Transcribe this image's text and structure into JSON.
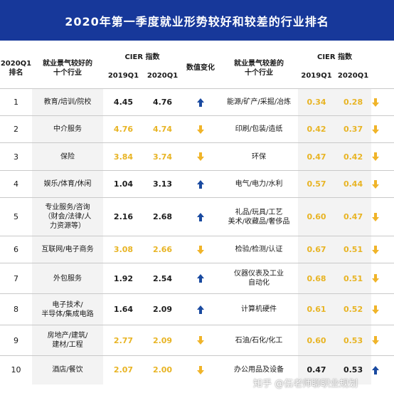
{
  "title": "2020年第一季度就业形势较好和较差的行业排名",
  "headers": {
    "rank_line1": "2020Q1",
    "rank_line2": "排名",
    "good_line1": "就业景气较好的",
    "good_line2": "十个行业",
    "cier_good": "CIER 指数",
    "cier_bad": "CIER 指数",
    "y2019": "2019Q1",
    "y2020": "2020Q1",
    "change": "数值变化",
    "bad_line1": "就业景气较差的",
    "bad_line2": "十个行业",
    "y2019b": "2019Q1",
    "y2020b": "2020Q1"
  },
  "colors": {
    "title_bg": "#17389a",
    "up_arrow": "#1a4aa0",
    "down_arrow": "#f0b429",
    "decline_value": "#e8b424"
  },
  "rows": [
    {
      "rank": "1",
      "good_lines": [
        "教育/培训/院校"
      ],
      "g2019": "4.45",
      "g2020": "4.76",
      "g_change": "up",
      "bad_lines": [
        "能源/矿产/采掘/冶炼"
      ],
      "b2019": "0.34",
      "b2020": "0.28",
      "b_change": "down"
    },
    {
      "rank": "2",
      "good_lines": [
        "中介服务"
      ],
      "g2019": "4.76",
      "g2020": "4.74",
      "g_change": "down",
      "bad_lines": [
        "印刷/包装/造纸"
      ],
      "b2019": "0.42",
      "b2020": "0.37",
      "b_change": "down"
    },
    {
      "rank": "3",
      "good_lines": [
        "保险"
      ],
      "g2019": "3.84",
      "g2020": "3.74",
      "g_change": "down",
      "bad_lines": [
        "环保"
      ],
      "b2019": "0.47",
      "b2020": "0.42",
      "b_change": "down"
    },
    {
      "rank": "4",
      "good_lines": [
        "娱乐/体育/休闲"
      ],
      "g2019": "1.04",
      "g2020": "3.13",
      "g_change": "up",
      "bad_lines": [
        "电气/电力/水利"
      ],
      "b2019": "0.57",
      "b2020": "0.44",
      "b_change": "down"
    },
    {
      "rank": "5",
      "good_lines": [
        "专业服务/咨询",
        "（财会/法律/人",
        "力资源等）"
      ],
      "g2019": "2.16",
      "g2020": "2.68",
      "g_change": "up",
      "bad_lines": [
        "礼品/玩具/工艺",
        "美术/收藏品/奢侈品"
      ],
      "b2019": "0.60",
      "b2020": "0.47",
      "b_change": "down"
    },
    {
      "rank": "6",
      "good_lines": [
        "互联网/电子商务"
      ],
      "g2019": "3.08",
      "g2020": "2.66",
      "g_change": "down",
      "bad_lines": [
        "检验/检测/认证"
      ],
      "b2019": "0.67",
      "b2020": "0.51",
      "b_change": "down"
    },
    {
      "rank": "7",
      "good_lines": [
        "外包服务"
      ],
      "g2019": "1.92",
      "g2020": "2.54",
      "g_change": "up",
      "bad_lines": [
        "仪器仪表及工业",
        "自动化"
      ],
      "b2019": "0.68",
      "b2020": "0.51",
      "b_change": "down"
    },
    {
      "rank": "8",
      "good_lines": [
        "电子技术/",
        "半导体/集成电路"
      ],
      "g2019": "1.64",
      "g2020": "2.09",
      "g_change": "up",
      "bad_lines": [
        "计算机硬件"
      ],
      "b2019": "0.61",
      "b2020": "0.52",
      "b_change": "down"
    },
    {
      "rank": "9",
      "good_lines": [
        "房地产/建筑/",
        "建材/工程"
      ],
      "g2019": "2.77",
      "g2020": "2.09",
      "g_change": "down",
      "bad_lines": [
        "石油/石化/化工"
      ],
      "b2019": "0.60",
      "b2020": "0.53",
      "b_change": "down"
    },
    {
      "rank": "10",
      "good_lines": [
        "酒店/餐饮"
      ],
      "g2019": "2.07",
      "g2020": "2.00",
      "g_change": "down",
      "bad_lines": [
        "办公用品及设备"
      ],
      "b2019": "0.47",
      "b2020": "0.53",
      "b_change": "up"
    }
  ],
  "watermark": "知乎 @伍老师聊职业规划"
}
